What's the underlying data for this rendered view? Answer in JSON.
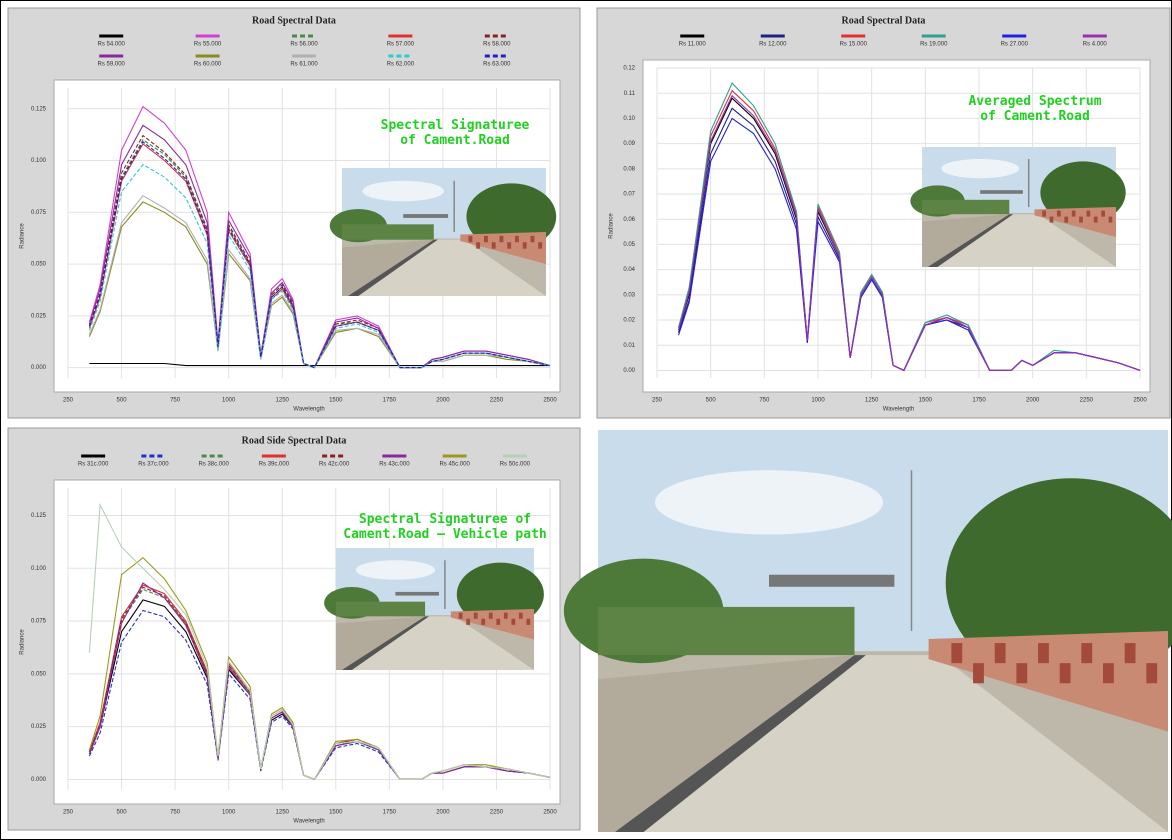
{
  "chart_data": [
    {
      "type": "line",
      "title": "Road Spectral Data",
      "x_label": "Wavelength",
      "y_label": "Radiance",
      "annotation": "Spectral Signaturee of Cament.Road",
      "x": [
        350,
        400,
        500,
        600,
        700,
        800,
        900,
        950,
        1000,
        1100,
        1150,
        1200,
        1250,
        1300,
        1350,
        1400,
        1500,
        1600,
        1700,
        1800,
        1900,
        1950,
        2000,
        2100,
        2200,
        2300,
        2400,
        2500
      ],
      "xlim": [
        250,
        2500
      ],
      "xticks": [
        250,
        500,
        750,
        1000,
        1250,
        1500,
        1750,
        2000,
        2250,
        2500
      ],
      "ylim": [
        -0.005,
        0.135
      ],
      "yticks": [
        {
          "value": 0,
          "label": "0.000"
        },
        0.025,
        {
          "value": 0.05,
          "label": "0.050"
        },
        0.075,
        {
          "value": 0.1,
          "label": "0.100"
        },
        0.125
      ],
      "grid": true,
      "series": [
        {
          "name": "Rs 54.000",
          "color": "#000000",
          "dash": false,
          "values": [
            0.002,
            0.002,
            0.002,
            0.002,
            0.002,
            0.001,
            0.001,
            0.001,
            0.001,
            0.001,
            0.001,
            0.001,
            0.001,
            0.001,
            0.001,
            0.001,
            0.001,
            0.001,
            0.001,
            0.001,
            0.001,
            0.001,
            0.001,
            0.001,
            0.001,
            0.001,
            0.001,
            0.001
          ]
        },
        {
          "name": "Rs 55.000",
          "color": "#d040d0",
          "dash": false,
          "values": [
            0.022,
            0.04,
            0.105,
            0.126,
            0.118,
            0.105,
            0.075,
            0.012,
            0.075,
            0.055,
            0.006,
            0.038,
            0.043,
            0.033,
            0.002,
            0,
            0.023,
            0.025,
            0.02,
            0,
            0,
            0.004,
            0.005,
            0.008,
            0.008,
            0.006,
            0.004,
            0.001
          ]
        },
        {
          "name": "Rs 56.000",
          "color": "#4a8a4a",
          "dash": true,
          "values": [
            0.02,
            0.035,
            0.092,
            0.11,
            0.103,
            0.092,
            0.066,
            0.01,
            0.068,
            0.05,
            0.005,
            0.034,
            0.039,
            0.03,
            0.002,
            0,
            0.021,
            0.022,
            0.018,
            0,
            0,
            0.003,
            0.004,
            0.007,
            0.007,
            0.005,
            0.003,
            0.001
          ]
        },
        {
          "name": "Rs 57.000",
          "color": "#e03030",
          "dash": false,
          "values": [
            0.019,
            0.034,
            0.09,
            0.108,
            0.1,
            0.09,
            0.064,
            0.01,
            0.066,
            0.049,
            0.005,
            0.033,
            0.038,
            0.029,
            0.002,
            0,
            0.02,
            0.022,
            0.018,
            0,
            0,
            0.003,
            0.004,
            0.007,
            0.007,
            0.005,
            0.003,
            0.001
          ]
        },
        {
          "name": "Rs 58.000",
          "color": "#8b2020",
          "dash": true,
          "values": [
            0.02,
            0.036,
            0.094,
            0.112,
            0.104,
            0.093,
            0.067,
            0.011,
            0.069,
            0.051,
            0.005,
            0.035,
            0.04,
            0.031,
            0.002,
            0,
            0.021,
            0.023,
            0.019,
            0,
            0,
            0.003,
            0.004,
            0.007,
            0.007,
            0.005,
            0.003,
            0.001
          ]
        },
        {
          "name": "Rs 59.000",
          "color": "#8a2a9a",
          "dash": false,
          "values": [
            0.021,
            0.038,
            0.098,
            0.117,
            0.11,
            0.098,
            0.07,
            0.011,
            0.071,
            0.053,
            0.006,
            0.036,
            0.041,
            0.032,
            0.002,
            0,
            0.022,
            0.024,
            0.019,
            0,
            0,
            0.004,
            0.005,
            0.008,
            0.008,
            0.006,
            0.004,
            0.001
          ]
        },
        {
          "name": "Rs 60.000",
          "color": "#8a8a20",
          "dash": false,
          "values": [
            0.015,
            0.027,
            0.068,
            0.08,
            0.075,
            0.068,
            0.05,
            0.008,
            0.055,
            0.042,
            0.004,
            0.03,
            0.034,
            0.026,
            0.002,
            0,
            0.017,
            0.019,
            0.015,
            0,
            0,
            0.003,
            0.003,
            0.006,
            0.006,
            0.004,
            0.003,
            0.001
          ]
        },
        {
          "name": "Rs 61.000",
          "color": "#b0b0b0",
          "dash": false,
          "values": [
            0.016,
            0.028,
            0.07,
            0.083,
            0.077,
            0.07,
            0.052,
            0.008,
            0.057,
            0.043,
            0.004,
            0.031,
            0.035,
            0.027,
            0.002,
            0,
            0.018,
            0.019,
            0.016,
            0,
            0,
            0.003,
            0.003,
            0.006,
            0.006,
            0.005,
            0.003,
            0.001
          ]
        },
        {
          "name": "Rs 62.000",
          "color": "#30c8d0",
          "dash": true,
          "values": [
            0.018,
            0.032,
            0.085,
            0.098,
            0.092,
            0.082,
            0.06,
            0.009,
            0.064,
            0.047,
            0.005,
            0.033,
            0.037,
            0.028,
            0.002,
            0,
            0.019,
            0.021,
            0.017,
            0,
            0,
            0.003,
            0.004,
            0.007,
            0.007,
            0.005,
            0.003,
            0.001
          ]
        },
        {
          "name": "Rs 63.000",
          "color": "#2020c0",
          "dash": true,
          "values": [
            0.02,
            0.035,
            0.091,
            0.109,
            0.101,
            0.091,
            0.065,
            0.01,
            0.067,
            0.05,
            0.005,
            0.034,
            0.039,
            0.03,
            0.002,
            0,
            0.02,
            0.022,
            0.018,
            0,
            0,
            0.003,
            0.004,
            0.007,
            0.007,
            0.005,
            0.003,
            0.001
          ]
        }
      ]
    },
    {
      "type": "line",
      "title": "Road Spectral Data",
      "x_label": "Wavelength",
      "y_label": "Radiance",
      "annotation": "Averaged Spectrum of Cament.Road",
      "x": [
        350,
        400,
        500,
        600,
        700,
        800,
        900,
        950,
        1000,
        1100,
        1150,
        1200,
        1250,
        1300,
        1350,
        1400,
        1500,
        1600,
        1700,
        1800,
        1900,
        1950,
        2000,
        2100,
        2200,
        2300,
        2400,
        2500
      ],
      "xlim": [
        250,
        2500
      ],
      "xticks": [
        250,
        500,
        750,
        1000,
        1250,
        1500,
        1750,
        2000,
        2250,
        2500
      ],
      "ylim": [
        -0.003,
        0.12
      ],
      "yticks": [
        {
          "value": 0,
          "label": "0.00"
        },
        0.01,
        0.02,
        0.03,
        0.04,
        0.05,
        0.06,
        0.07,
        0.08,
        0.09,
        {
          "value": 0.1,
          "label": "0.10"
        },
        0.11,
        0.12
      ],
      "grid": true,
      "series": [
        {
          "name": "Rs 11.000",
          "color": "#000000",
          "dash": false,
          "values": [
            0.016,
            0.03,
            0.09,
            0.108,
            0.1,
            0.086,
            0.06,
            0.012,
            0.063,
            0.045,
            0.005,
            0.03,
            0.037,
            0.03,
            0.002,
            0,
            0.018,
            0.021,
            0.017,
            0,
            0,
            0.004,
            0.002,
            0.007,
            0.007,
            0.005,
            0.003,
            0
          ]
        },
        {
          "name": "Rs 12.000",
          "color": "#202080",
          "dash": false,
          "values": [
            0.015,
            0.028,
            0.086,
            0.104,
            0.097,
            0.083,
            0.058,
            0.011,
            0.061,
            0.044,
            0.005,
            0.029,
            0.036,
            0.029,
            0.002,
            0,
            0.018,
            0.02,
            0.017,
            0,
            0,
            0.004,
            0.002,
            0.007,
            0.007,
            0.005,
            0.003,
            0
          ]
        },
        {
          "name": "Rs 15.000",
          "color": "#e03030",
          "dash": false,
          "values": [
            0.017,
            0.032,
            0.093,
            0.111,
            0.103,
            0.088,
            0.062,
            0.012,
            0.065,
            0.046,
            0.005,
            0.031,
            0.038,
            0.031,
            0.002,
            0,
            0.019,
            0.021,
            0.018,
            0,
            0,
            0.004,
            0.002,
            0.007,
            0.007,
            0.005,
            0.003,
            0
          ]
        },
        {
          "name": "Rs 19.000",
          "color": "#30a090",
          "dash": false,
          "values": [
            0.017,
            0.033,
            0.095,
            0.114,
            0.105,
            0.09,
            0.063,
            0.012,
            0.066,
            0.047,
            0.005,
            0.031,
            0.038,
            0.031,
            0.002,
            0,
            0.019,
            0.022,
            0.018,
            0,
            0,
            0.004,
            0.002,
            0.008,
            0.007,
            0.005,
            0.003,
            0
          ]
        },
        {
          "name": "Rs 27.000",
          "color": "#2020e0",
          "dash": false,
          "values": [
            0.014,
            0.027,
            0.083,
            0.1,
            0.094,
            0.08,
            0.056,
            0.011,
            0.059,
            0.043,
            0.005,
            0.029,
            0.036,
            0.029,
            0.002,
            0,
            0.018,
            0.02,
            0.016,
            0,
            0,
            0.004,
            0.002,
            0.007,
            0.007,
            0.005,
            0.003,
            0
          ]
        },
        {
          "name": "Rs 4.000",
          "color": "#9a30b0",
          "dash": false,
          "values": [
            0.016,
            0.031,
            0.091,
            0.109,
            0.101,
            0.087,
            0.061,
            0.012,
            0.064,
            0.045,
            0.005,
            0.03,
            0.037,
            0.03,
            0.002,
            0,
            0.018,
            0.021,
            0.017,
            0,
            0,
            0.004,
            0.002,
            0.007,
            0.007,
            0.005,
            0.003,
            0
          ]
        }
      ]
    },
    {
      "type": "line",
      "title": "Road Side Spectral Data",
      "x_label": "Wavelength",
      "y_label": "Radiance",
      "annotation": "Spectral Signaturee of Cament.Road – Vehicle path",
      "x": [
        350,
        400,
        500,
        600,
        700,
        800,
        900,
        950,
        1000,
        1100,
        1150,
        1200,
        1250,
        1300,
        1350,
        1400,
        1500,
        1600,
        1700,
        1800,
        1900,
        1950,
        2000,
        2100,
        2200,
        2300,
        2400,
        2500
      ],
      "xlim": [
        250,
        2500
      ],
      "xticks": [
        250,
        500,
        750,
        1000,
        1250,
        1500,
        1750,
        2000,
        2250,
        2500
      ],
      "ylim": [
        -0.005,
        0.138
      ],
      "yticks": [
        {
          "value": 0,
          "label": "0.000"
        },
        0.025,
        {
          "value": 0.05,
          "label": "0.050"
        },
        0.075,
        {
          "value": 0.1,
          "label": "0.100"
        },
        0.125
      ],
      "grid": true,
      "series": [
        {
          "name": "Rs 31c.000",
          "color": "#000000",
          "dash": false,
          "values": [
            0.012,
            0.025,
            0.07,
            0.085,
            0.082,
            0.07,
            0.048,
            0.01,
            0.052,
            0.04,
            0.005,
            0.028,
            0.031,
            0.025,
            0.002,
            0,
            0.016,
            0.018,
            0.014,
            0,
            0,
            0.003,
            0.003,
            0.006,
            0.006,
            0.004,
            0.003,
            0.001
          ]
        },
        {
          "name": "Rs 37c.000",
          "color": "#2030d0",
          "dash": true,
          "values": [
            0.011,
            0.022,
            0.065,
            0.08,
            0.077,
            0.066,
            0.045,
            0.009,
            0.05,
            0.038,
            0.004,
            0.027,
            0.03,
            0.024,
            0.002,
            0,
            0.015,
            0.017,
            0.013,
            0,
            0,
            0.003,
            0.003,
            0.006,
            0.006,
            0.004,
            0.003,
            0.001
          ]
        },
        {
          "name": "Rs 38c.000",
          "color": "#4a8a4a",
          "dash": true,
          "values": [
            0.013,
            0.026,
            0.075,
            0.09,
            0.086,
            0.074,
            0.05,
            0.01,
            0.054,
            0.041,
            0.005,
            0.029,
            0.032,
            0.026,
            0.002,
            0,
            0.017,
            0.018,
            0.014,
            0,
            0,
            0.003,
            0.003,
            0.006,
            0.006,
            0.005,
            0.003,
            0.001
          ]
        },
        {
          "name": "Rs 39c.000",
          "color": "#e03030",
          "dash": false,
          "values": [
            0.013,
            0.027,
            0.077,
            0.092,
            0.088,
            0.075,
            0.051,
            0.01,
            0.055,
            0.042,
            0.005,
            0.03,
            0.033,
            0.026,
            0.002,
            0,
            0.017,
            0.019,
            0.015,
            0,
            0,
            0.003,
            0.004,
            0.007,
            0.006,
            0.005,
            0.003,
            0.001
          ]
        },
        {
          "name": "Rs 42c.000",
          "color": "#8b2020",
          "dash": true,
          "values": [
            0.013,
            0.026,
            0.076,
            0.091,
            0.087,
            0.074,
            0.05,
            0.01,
            0.054,
            0.041,
            0.005,
            0.029,
            0.032,
            0.026,
            0.002,
            0,
            0.017,
            0.019,
            0.015,
            0,
            0,
            0.003,
            0.004,
            0.007,
            0.006,
            0.005,
            0.003,
            0.001
          ]
        },
        {
          "name": "Rs 43c.000",
          "color": "#8a2a9a",
          "dash": false,
          "values": [
            0.012,
            0.025,
            0.074,
            0.093,
            0.086,
            0.073,
            0.049,
            0.01,
            0.053,
            0.04,
            0.005,
            0.029,
            0.032,
            0.025,
            0.002,
            0,
            0.016,
            0.018,
            0.014,
            0,
            0,
            0.003,
            0.003,
            0.006,
            0.006,
            0.004,
            0.003,
            0.001
          ]
        },
        {
          "name": "Rs 45c.000",
          "color": "#9a9a20",
          "dash": false,
          "values": [
            0.014,
            0.03,
            0.097,
            0.105,
            0.095,
            0.08,
            0.055,
            0.011,
            0.058,
            0.044,
            0.005,
            0.031,
            0.034,
            0.027,
            0.002,
            0,
            0.018,
            0.019,
            0.015,
            0,
            0,
            0.003,
            0.004,
            0.007,
            0.007,
            0.005,
            0.003,
            0.001
          ]
        },
        {
          "name": "Rs 50c.000",
          "color": "#b8d0b8",
          "dash": false,
          "values": [
            0.06,
            0.13,
            0.11,
            0.1,
            0.09,
            0.078,
            0.053,
            0.011,
            0.056,
            0.042,
            0.005,
            0.03,
            0.033,
            0.026,
            0.002,
            0,
            0.017,
            0.018,
            0.015,
            0,
            0,
            0.003,
            0.004,
            0.007,
            0.006,
            0.005,
            0.003,
            0.001
          ]
        }
      ]
    }
  ]
}
